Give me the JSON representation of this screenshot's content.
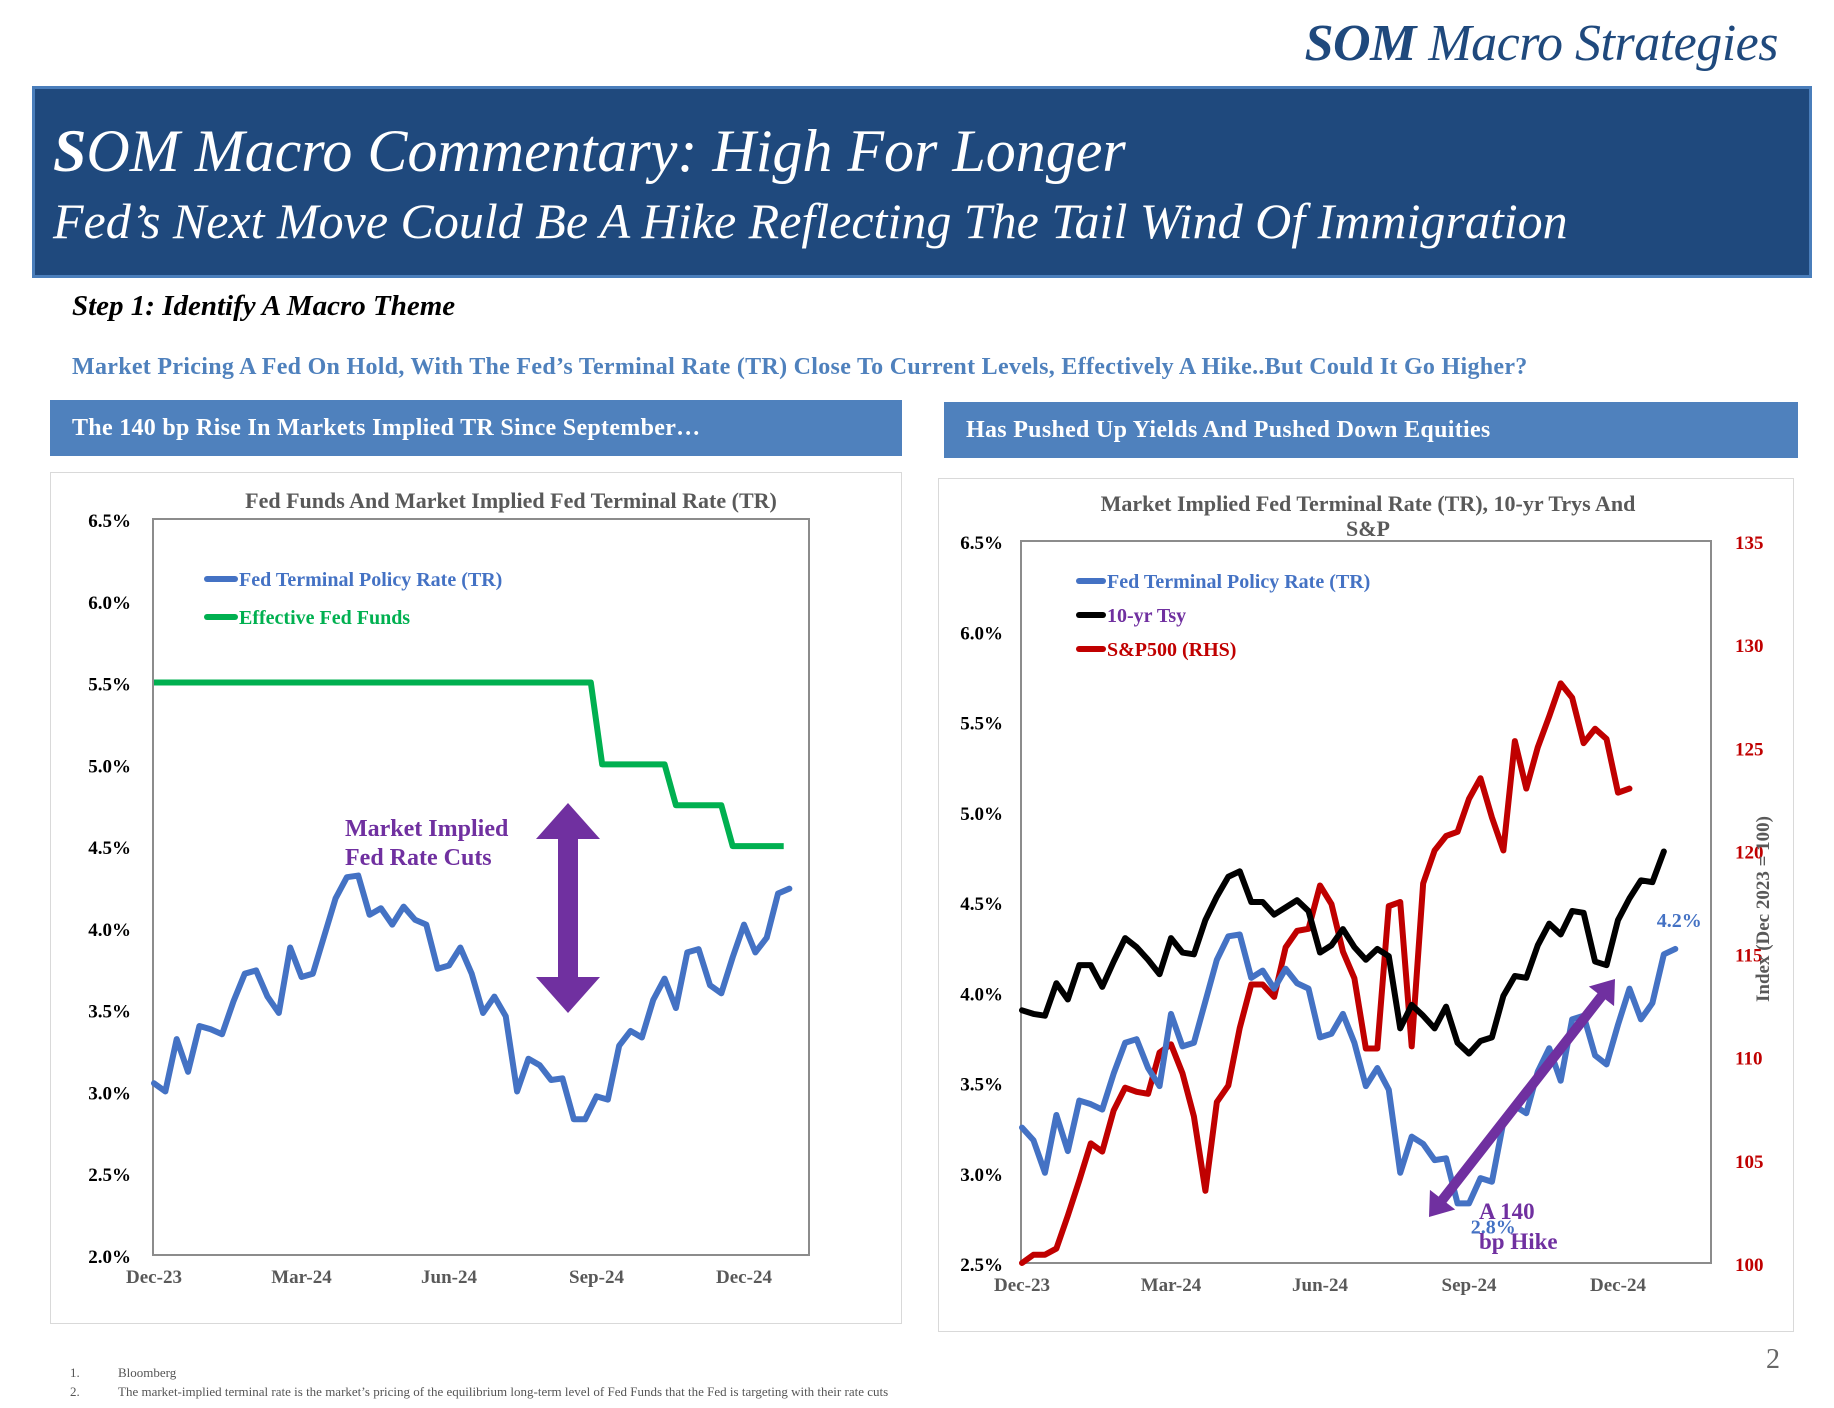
{
  "brand": {
    "bold": "SOM",
    "rest": " Macro Strategies"
  },
  "banner": {
    "title_bold": "S",
    "title_rest": "OM Macro Commentary: High For Longer",
    "subtitle": "Fed’s Next Move Could Be A Hike Reflecting The Tail Wind Of Immigration"
  },
  "step": "Step 1: Identify A Macro Theme",
  "lead": "Market Pricing A Fed On Hold, With The Fed’s Terminal Rate (TR) Close To Current Levels, Effectively A Hike..But Could It Go Higher?",
  "left_header": "The 140 bp Rise In Markets Implied TR Since September…",
  "right_header": "Has Pushed Up Yields And Pushed Down Equities",
  "footnotes": [
    {
      "n": "1.",
      "text": "Bloomberg"
    },
    {
      "n": "2.",
      "text": "The market-implied terminal rate is the market’s pricing of the equilibrium long-term level of Fed Funds that the Fed is targeting with their rate cuts"
    }
  ],
  "page_number": "2",
  "colors": {
    "navy": "#1f497d",
    "blue": "#4472c4",
    "green": "#00b050",
    "red": "#c00000",
    "black": "#000000",
    "purple": "#7030a0"
  },
  "chart_data": [
    {
      "type": "line",
      "title": "Fed Funds And Market Implied Fed Terminal Rate (TR)",
      "xlabel": "",
      "ylabel": "",
      "ylim": [
        2.0,
        6.5
      ],
      "y_ticks": [
        "2.0%",
        "2.5%",
        "3.0%",
        "3.5%",
        "4.0%",
        "4.5%",
        "5.0%",
        "5.5%",
        "6.0%",
        "6.5%"
      ],
      "x_ticks": [
        "Dec-23",
        "Mar-24",
        "Jun-24",
        "Sep-24",
        "Dec-24"
      ],
      "x_tick_weeks": [
        0,
        13,
        26,
        39,
        52
      ],
      "legend": "top-left",
      "annotation": {
        "line1": "Market Implied",
        "line2": "Fed Rate Cuts"
      },
      "series": [
        {
          "name": "Fed Terminal Policy Rate (TR)",
          "color": "#4472c4",
          "values": [
            3.05,
            3.0,
            3.32,
            3.12,
            3.4,
            3.38,
            3.35,
            3.55,
            3.72,
            3.74,
            3.58,
            3.48,
            3.88,
            3.7,
            3.72,
            3.95,
            4.18,
            4.31,
            4.32,
            4.08,
            4.12,
            4.02,
            4.13,
            4.05,
            4.02,
            3.75,
            3.77,
            3.88,
            3.72,
            3.48,
            3.58,
            3.46,
            3.0,
            3.2,
            3.16,
            3.07,
            3.08,
            2.83,
            2.83,
            2.97,
            2.95,
            3.28,
            3.37,
            3.33,
            3.56,
            3.69,
            3.51,
            3.85,
            3.87,
            3.65,
            3.6,
            3.82,
            4.02,
            3.85,
            3.94,
            4.21,
            4.24
          ]
        },
        {
          "name": "Effective Fed Funds",
          "color": "#00b050",
          "steps": [
            [
              0,
              5.5
            ],
            [
              38.5,
              5.5
            ],
            [
              39.5,
              5.0
            ],
            [
              45,
              5.0
            ],
            [
              46,
              4.75
            ],
            [
              50,
              4.75
            ],
            [
              51,
              4.5
            ],
            [
              55.5,
              4.5
            ]
          ]
        }
      ]
    },
    {
      "type": "line",
      "title": "Market Implied Fed Terminal Rate (TR), 10-yr Trys And S&P",
      "xlabel": "",
      "ylabel": "",
      "y2label": "Index (Dec 2023 = 100)",
      "ylim": [
        2.5,
        6.5
      ],
      "y2lim": [
        100,
        135
      ],
      "y_ticks": [
        "2.5%",
        "3.0%",
        "3.5%",
        "4.0%",
        "4.5%",
        "5.0%",
        "5.5%",
        "6.0%",
        "6.5%"
      ],
      "y2_ticks": [
        "100",
        "105",
        "110",
        "115",
        "120",
        "125",
        "130",
        "135"
      ],
      "x_ticks": [
        "Dec-23",
        "Mar-24",
        "Jun-24",
        "Sep-24",
        "Dec-24"
      ],
      "x_tick_weeks": [
        0,
        13,
        26,
        39,
        52
      ],
      "legend": "top-left",
      "annotations": {
        "start_label": "2.8%",
        "end_label": "4.2%",
        "hike_line1": "A 140",
        "hike_line2": "bp Hike"
      },
      "series": [
        {
          "name": "Fed Terminal Policy Rate (TR)",
          "color": "#4472c4",
          "axis": "left",
          "values": [
            3.25,
            3.18,
            3.0,
            3.32,
            3.12,
            3.4,
            3.38,
            3.35,
            3.55,
            3.72,
            3.74,
            3.58,
            3.48,
            3.88,
            3.7,
            3.72,
            3.95,
            4.18,
            4.31,
            4.32,
            4.08,
            4.12,
            4.02,
            4.13,
            4.05,
            4.02,
            3.75,
            3.77,
            3.88,
            3.72,
            3.48,
            3.58,
            3.46,
            3.0,
            3.2,
            3.16,
            3.07,
            3.08,
            2.83,
            2.83,
            2.97,
            2.95,
            3.28,
            3.37,
            3.33,
            3.56,
            3.69,
            3.51,
            3.85,
            3.87,
            3.65,
            3.6,
            3.82,
            4.02,
            3.85,
            3.94,
            4.21,
            4.24
          ]
        },
        {
          "name": "10-yr Tsy",
          "color": "#000000",
          "axis": "left",
          "values": [
            3.9,
            3.88,
            3.87,
            4.05,
            3.96,
            4.15,
            4.15,
            4.03,
            4.17,
            4.3,
            4.25,
            4.18,
            4.1,
            4.3,
            4.22,
            4.21,
            4.4,
            4.53,
            4.64,
            4.67,
            4.5,
            4.5,
            4.43,
            4.47,
            4.51,
            4.45,
            4.22,
            4.26,
            4.35,
            4.25,
            4.18,
            4.24,
            4.2,
            3.8,
            3.93,
            3.87,
            3.8,
            3.92,
            3.72,
            3.66,
            3.73,
            3.75,
            3.98,
            4.09,
            4.08,
            4.26,
            4.38,
            4.32,
            4.45,
            4.44,
            4.17,
            4.15,
            4.4,
            4.52,
            4.62,
            4.61,
            4.78
          ]
        },
        {
          "name": "S&P500 (RHS)",
          "color": "#c00000",
          "axis": "right",
          "values": [
            100.0,
            100.4,
            100.4,
            100.7,
            102.3,
            104.0,
            105.8,
            105.4,
            107.4,
            108.5,
            108.3,
            108.2,
            110.2,
            110.6,
            109.2,
            107.1,
            103.5,
            107.8,
            108.6,
            111.4,
            113.5,
            113.5,
            112.9,
            115.3,
            116.1,
            116.2,
            118.3,
            117.4,
            115.1,
            113.8,
            110.4,
            110.4,
            117.3,
            117.5,
            110.5,
            118.4,
            120.0,
            120.7,
            120.9,
            122.5,
            123.5,
            121.6,
            120.0,
            125.3,
            123.0,
            125.0,
            126.5,
            128.1,
            127.4,
            125.2,
            125.9,
            125.4,
            122.8,
            123.0
          ]
        }
      ]
    }
  ]
}
